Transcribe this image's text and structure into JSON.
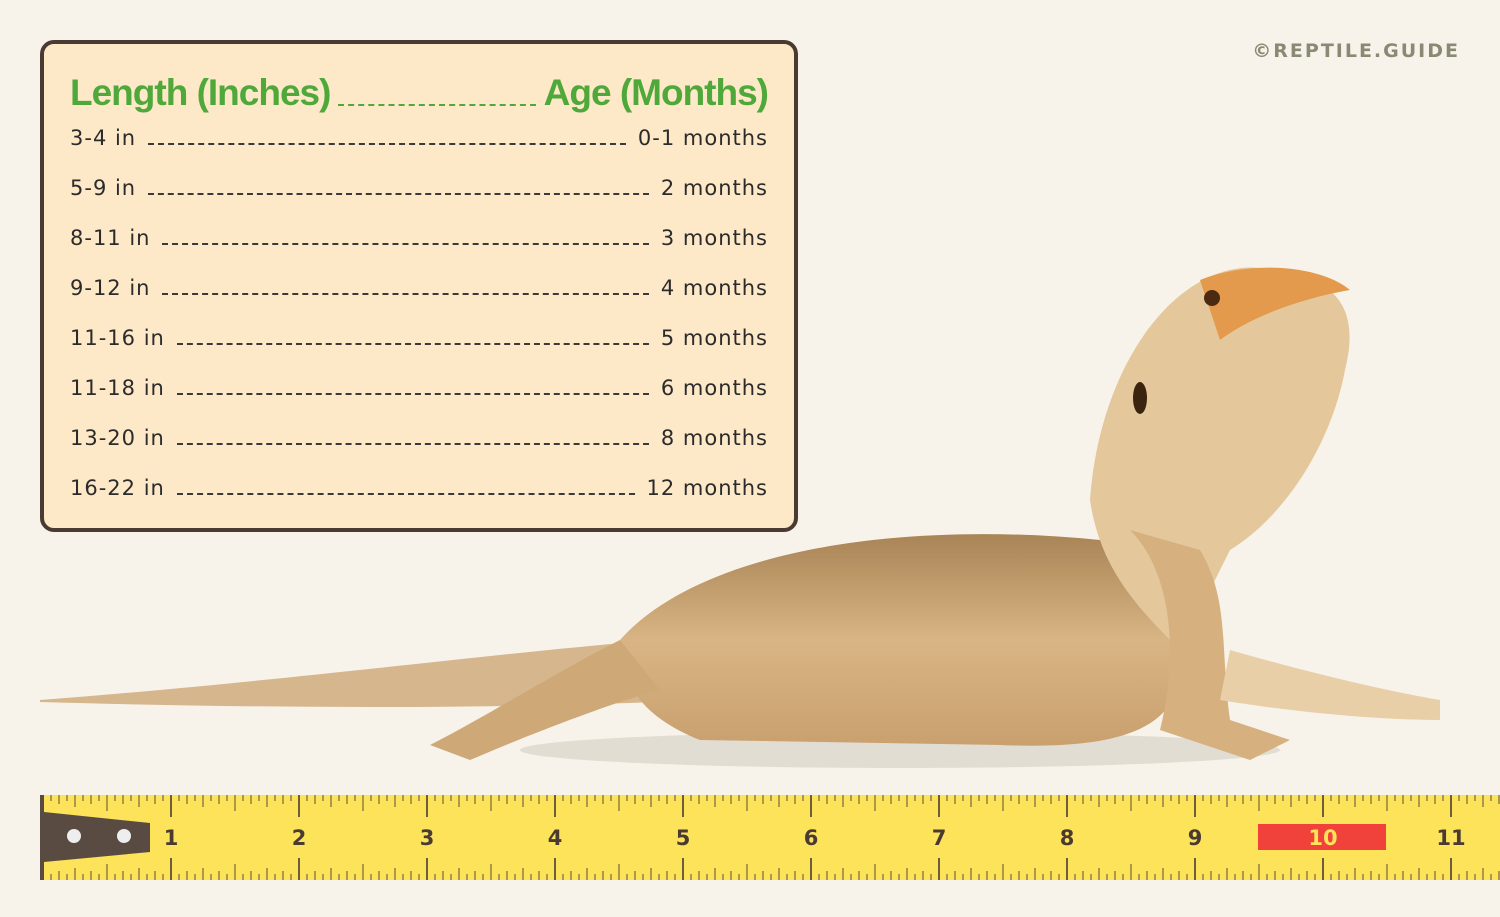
{
  "credit": "©REPTILE.GUIDE",
  "table": {
    "header_left": "Length (Inches)",
    "header_right": "Age (Months)",
    "rows": [
      {
        "length": "3-4 in",
        "age": "0-1 months"
      },
      {
        "length": "5-9 in",
        "age": "2 months"
      },
      {
        "length": "8-11 in",
        "age": "3 months"
      },
      {
        "length": "9-12 in",
        "age": "4 months"
      },
      {
        "length": "11-16 in",
        "age": "5 months"
      },
      {
        "length": "11-18 in",
        "age": "6 months"
      },
      {
        "length": "13-20 in",
        "age": "8 months"
      },
      {
        "length": "16-22 in",
        "age": "12 months"
      }
    ]
  },
  "ruler": {
    "labels": [
      "1",
      "2",
      "3",
      "4",
      "5",
      "6",
      "7",
      "8",
      "9",
      "10",
      "11"
    ],
    "highlighted": "10",
    "colors": {
      "tape": "#fde35a",
      "highlight": "#f0413a",
      "text": "#4a3b32"
    }
  },
  "colors": {
    "accent": "#4fa83a",
    "border": "#4a3b32",
    "card": "#fde8c8",
    "background": "#f7f3ea"
  }
}
